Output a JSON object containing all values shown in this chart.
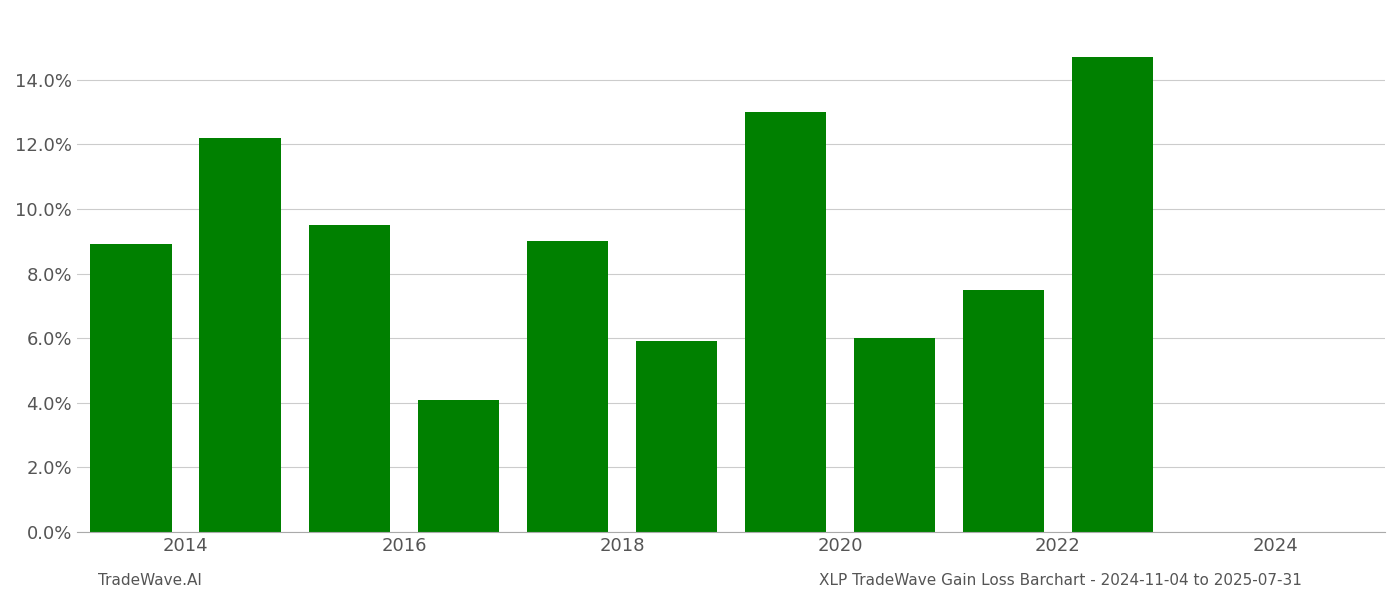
{
  "years": [
    2013.5,
    2014.5,
    2015.5,
    2016.5,
    2017.5,
    2018.5,
    2019.5,
    2020.5,
    2021.5,
    2022.5
  ],
  "values": [
    0.089,
    0.122,
    0.095,
    0.041,
    0.09,
    0.059,
    0.13,
    0.06,
    0.075,
    0.147
  ],
  "bar_color": "#008000",
  "footer_left": "TradeWave.AI",
  "footer_right": "XLP TradeWave Gain Loss Barchart - 2024-11-04 to 2025-07-31",
  "ylim": [
    0,
    0.16
  ],
  "ytick_values": [
    0.0,
    0.02,
    0.04,
    0.06,
    0.08,
    0.1,
    0.12,
    0.14
  ],
  "xtick_values": [
    2014,
    2016,
    2018,
    2020,
    2022,
    2024
  ],
  "xlim": [
    2013.0,
    2025.0
  ],
  "background_color": "#ffffff",
  "grid_color": "#cccccc",
  "bar_width": 0.75
}
